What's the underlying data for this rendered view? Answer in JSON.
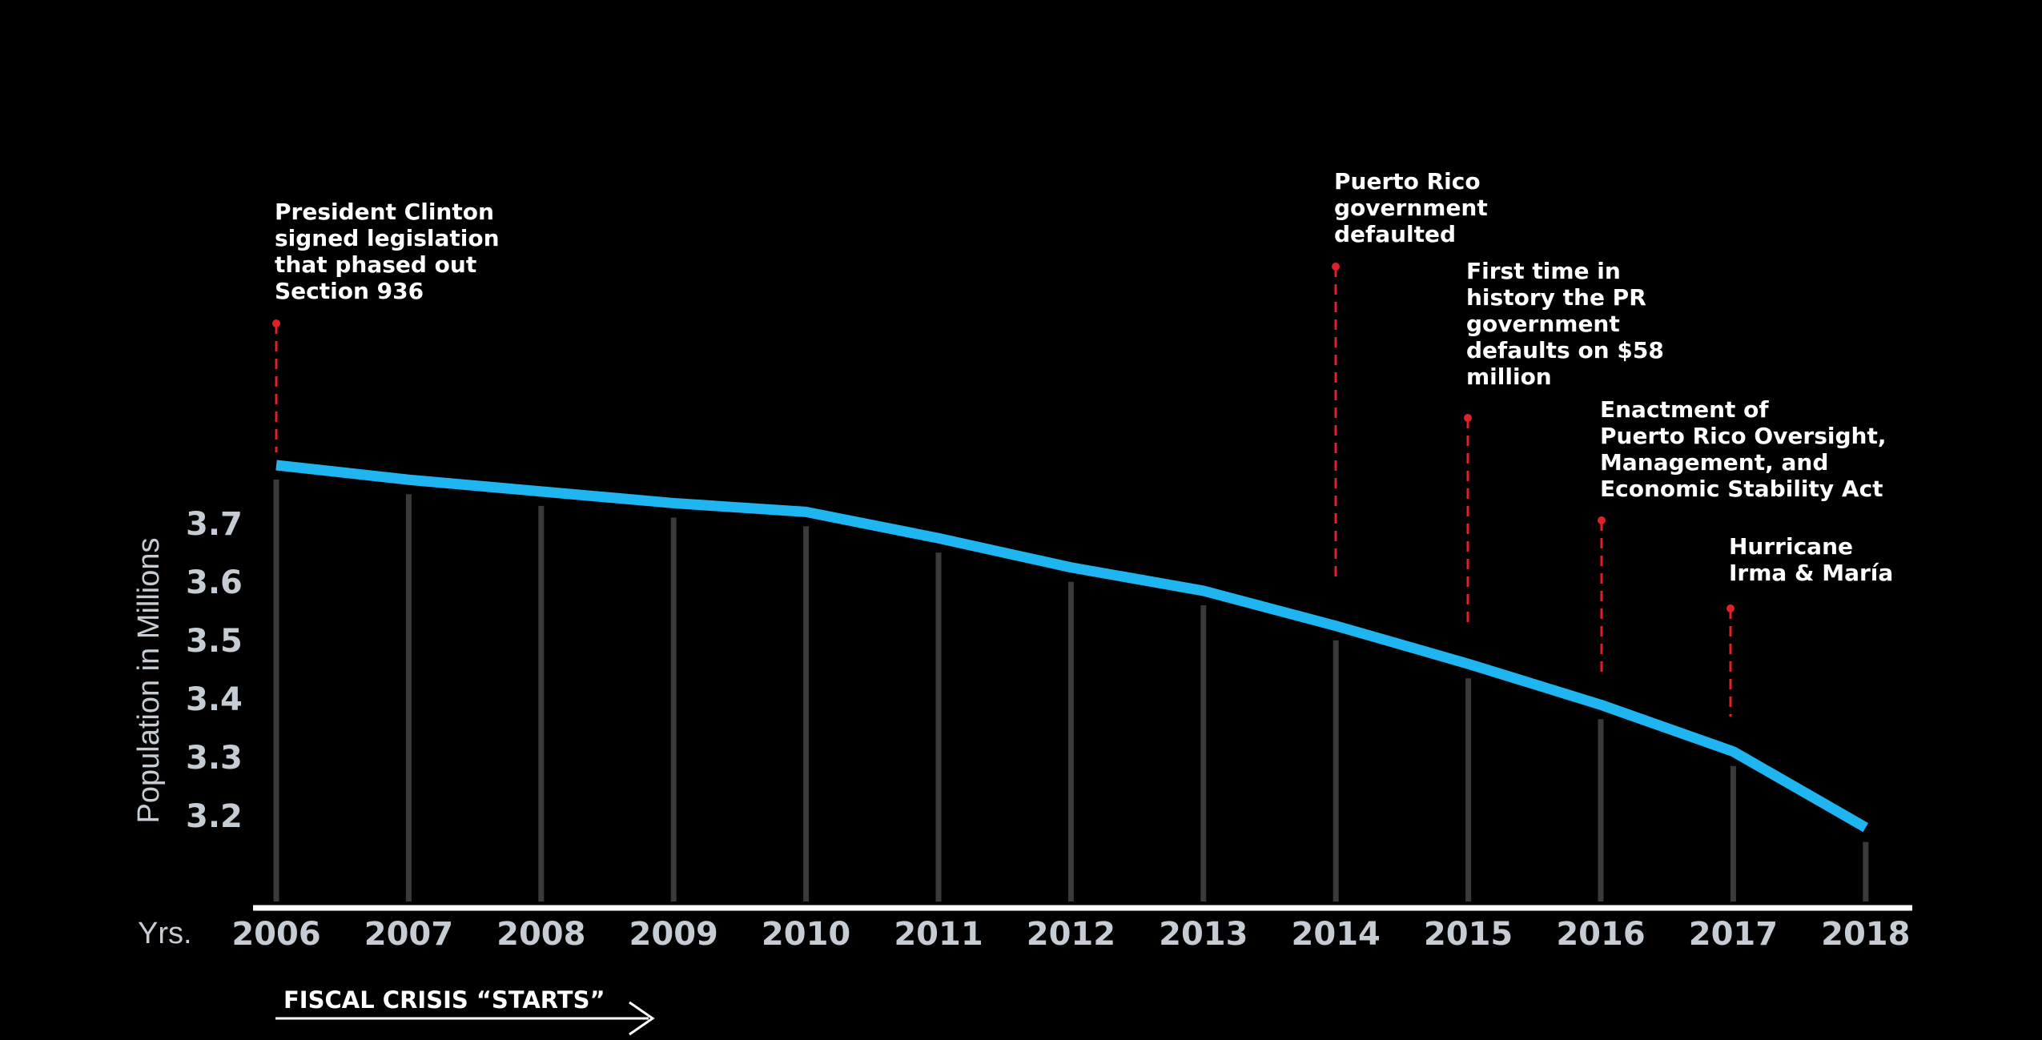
{
  "chart_data": {
    "type": "line",
    "ylabel": "Population in Millions",
    "xlabel": "Yrs.",
    "x": [
      "2006",
      "2007",
      "2008",
      "2009",
      "2010",
      "2011",
      "2012",
      "2013",
      "2014",
      "2015",
      "2016",
      "2017",
      "2018"
    ],
    "series": [
      {
        "values": [
          3.8,
          3.775,
          3.755,
          3.735,
          3.72,
          3.675,
          3.625,
          3.585,
          3.525,
          3.46,
          3.39,
          3.31,
          3.18
        ]
      }
    ],
    "yticks": [
      "3.7",
      "3.6",
      "3.5",
      "3.4",
      "3.3",
      "3.2"
    ],
    "ytick_values": [
      3.7,
      3.6,
      3.5,
      3.4,
      3.3,
      3.2
    ],
    "annotations": [
      {
        "year": "2006",
        "lines": [
          "President Clinton",
          "signed legislation",
          "that phased out",
          "Section 936"
        ]
      },
      {
        "year": "2014",
        "lines": [
          "Puerto Rico",
          "government",
          "defaulted"
        ]
      },
      {
        "year": "2015",
        "lines": [
          "First time in",
          "history the PR",
          "government",
          "defaults on $58",
          "million"
        ]
      },
      {
        "year": "2016",
        "lines": [
          "Enactment of",
          "Puerto Rico Oversight,",
          "Management, and",
          "Economic Stability Act"
        ]
      },
      {
        "year": "2017",
        "lines": [
          "Hurricane",
          "Irma & María"
        ]
      }
    ],
    "footer_label": "FISCAL CRISIS “STARTS”",
    "colors": {
      "background": "#000000",
      "line": "#1fb5f0",
      "marker": "#e0202a",
      "tick_text": "#c5ccd3",
      "annotation_text": "#ffffff",
      "bars": "#3a3a3a",
      "axis": "#ffffff"
    }
  }
}
